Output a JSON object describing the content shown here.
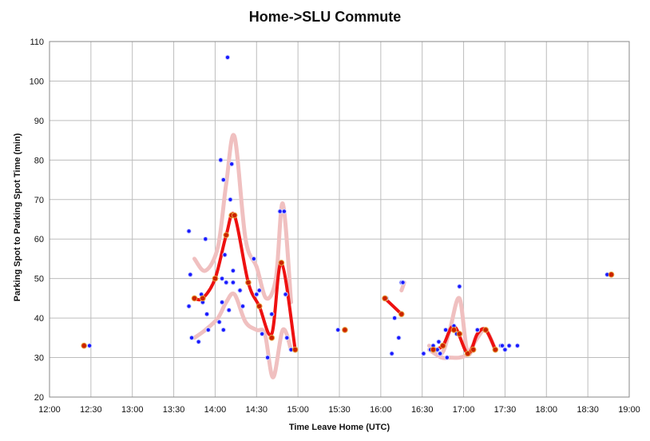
{
  "chart_data": {
    "type": "scatter",
    "title": "Home->SLU Commute",
    "xlabel": "Time Leave Home (UTC)",
    "ylabel": "Parking Spot to Parking Spot Time (min)",
    "x_ticks": [
      "12:00",
      "12:30",
      "13:00",
      "13:30",
      "14:00",
      "14:30",
      "15:00",
      "15:30",
      "16:00",
      "16:30",
      "17:00",
      "17:30",
      "18:00",
      "18:30",
      "19:00"
    ],
    "xlim": [
      "12:00",
      "19:00"
    ],
    "ylim": [
      20,
      110
    ],
    "y_ticks": [
      20,
      30,
      40,
      50,
      60,
      70,
      80,
      90,
      100,
      110
    ],
    "grid": true,
    "colors": {
      "observed": "#1a1aff",
      "average": "#ee1111",
      "band": "#f0c0c0",
      "avg_marker": "#cc2200"
    },
    "series": [
      {
        "points": [
          [
            "12:29",
            33
          ],
          [
            "13:41",
            62
          ],
          [
            "13:41",
            43
          ],
          [
            "13:42",
            51
          ],
          [
            "13:43",
            35
          ],
          [
            "13:48",
            34
          ],
          [
            "13:50",
            46
          ],
          [
            "13:51",
            44
          ],
          [
            "13:53",
            60
          ],
          [
            "13:54",
            41
          ],
          [
            "13:55",
            37
          ],
          [
            "14:03",
            39
          ],
          [
            "14:04",
            80
          ],
          [
            "14:05",
            50
          ],
          [
            "14:05",
            44
          ],
          [
            "14:06",
            75
          ],
          [
            "14:06",
            37
          ],
          [
            "14:07",
            56
          ],
          [
            "14:08",
            49
          ],
          [
            "14:09",
            106
          ],
          [
            "14:10",
            42
          ],
          [
            "14:11",
            70
          ],
          [
            "14:12",
            79
          ],
          [
            "14:13",
            49
          ],
          [
            "14:13",
            52
          ],
          [
            "14:18",
            47
          ],
          [
            "14:20",
            43
          ],
          [
            "14:28",
            55
          ],
          [
            "14:30",
            46
          ],
          [
            "14:32",
            47
          ],
          [
            "14:34",
            36
          ],
          [
            "14:38",
            30
          ],
          [
            "14:41",
            41
          ],
          [
            "14:47",
            67
          ],
          [
            "14:50",
            67
          ],
          [
            "14:51",
            46
          ],
          [
            "14:52",
            35
          ],
          [
            "14:55",
            32
          ],
          [
            "15:29",
            37
          ],
          [
            "16:04",
            45
          ],
          [
            "16:08",
            31
          ],
          [
            "16:10",
            40
          ],
          [
            "16:13",
            35
          ],
          [
            "16:15",
            49
          ],
          [
            "16:16",
            49
          ],
          [
            "16:31",
            31
          ],
          [
            "16:36",
            32
          ],
          [
            "16:38",
            33
          ],
          [
            "16:41",
            32
          ],
          [
            "16:42",
            34
          ],
          [
            "16:43",
            31
          ],
          [
            "16:47",
            37
          ],
          [
            "16:48",
            30
          ],
          [
            "16:53",
            38
          ],
          [
            "16:55",
            36
          ],
          [
            "16:57",
            48
          ],
          [
            "17:03",
            31
          ],
          [
            "17:07",
            32
          ],
          [
            "17:10",
            37
          ],
          [
            "17:27",
            33
          ],
          [
            "17:28",
            33
          ],
          [
            "17:30",
            32
          ],
          [
            "17:33",
            33
          ],
          [
            "17:39",
            33
          ],
          [
            "18:44",
            51
          ]
        ]
      },
      {
        "points": [
          [
            "12:25",
            33
          ],
          [
            "13:45",
            45
          ],
          [
            "13:51",
            45
          ],
          [
            "14:00",
            50
          ],
          [
            "14:08",
            61
          ],
          [
            "14:12",
            66
          ],
          [
            "14:14",
            66
          ],
          [
            "14:24",
            49
          ],
          [
            "14:32",
            43
          ],
          [
            "14:41",
            35
          ],
          [
            "14:48",
            54
          ],
          [
            "14:58",
            32
          ],
          [
            "15:34",
            37
          ],
          [
            "16:03",
            45
          ],
          [
            "16:15",
            41
          ],
          [
            "16:38",
            32
          ],
          [
            "16:45",
            33
          ],
          [
            "16:53",
            37
          ],
          [
            "16:57",
            36
          ],
          [
            "17:03",
            31
          ],
          [
            "17:07",
            32
          ],
          [
            "17:16",
            37
          ],
          [
            "17:23",
            32
          ],
          [
            "18:47",
            51
          ]
        ]
      },
      {
        "points": [
          [
            "13:45",
            45
          ],
          [
            "13:51",
            45
          ],
          [
            "14:00",
            50
          ],
          [
            "14:08",
            61
          ],
          [
            "14:14",
            66
          ],
          [
            "14:24",
            49
          ],
          [
            "14:32",
            43
          ],
          [
            "14:41",
            36
          ],
          [
            "14:48",
            54
          ],
          [
            "14:58",
            32
          ]
        ]
      },
      {
        "points": [
          [
            "16:03",
            45
          ],
          [
            "16:15",
            41
          ]
        ]
      },
      {
        "points": [
          [
            "16:38",
            32
          ],
          [
            "16:45",
            33
          ],
          [
            "16:53",
            38
          ],
          [
            "17:03",
            31
          ],
          [
            "17:10",
            36
          ],
          [
            "17:16",
            37
          ],
          [
            "17:23",
            32
          ]
        ]
      },
      {
        "points": [
          [
            "13:45",
            55
          ],
          [
            "13:53",
            52
          ],
          [
            "14:02",
            58
          ],
          [
            "14:08",
            74
          ],
          [
            "14:14",
            86
          ],
          [
            "14:22",
            60
          ],
          [
            "14:30",
            53
          ],
          [
            "14:37",
            45
          ],
          [
            "14:44",
            50
          ],
          [
            "14:49",
            69
          ],
          [
            "14:55",
            44
          ]
        ]
      },
      {
        "points": [
          [
            "13:45",
            35
          ],
          [
            "13:53",
            37
          ],
          [
            "14:02",
            40
          ],
          [
            "14:08",
            44
          ],
          [
            "14:14",
            46
          ],
          [
            "14:22",
            39
          ],
          [
            "14:30",
            37
          ],
          [
            "14:36",
            36
          ],
          [
            "14:42",
            25
          ],
          [
            "14:49",
            37
          ],
          [
            "14:55",
            32
          ]
        ]
      },
      {
        "points": [
          [
            "16:15",
            47
          ],
          [
            "16:17",
            49
          ]
        ]
      },
      {
        "points": [
          [
            "16:35",
            33
          ],
          [
            "16:44",
            31
          ],
          [
            "16:50",
            37
          ],
          [
            "16:57",
            45
          ],
          [
            "17:03",
            31
          ],
          [
            "17:10",
            36
          ],
          [
            "17:16",
            37
          ],
          [
            "17:23",
            32
          ]
        ]
      },
      {
        "points": [
          [
            "16:35",
            32
          ],
          [
            "16:44",
            30
          ],
          [
            "16:50",
            30
          ],
          [
            "16:57",
            30
          ],
          [
            "17:03",
            31
          ],
          [
            "17:10",
            35
          ],
          [
            "17:16",
            37
          ],
          [
            "17:23",
            32
          ]
        ]
      }
    ]
  }
}
